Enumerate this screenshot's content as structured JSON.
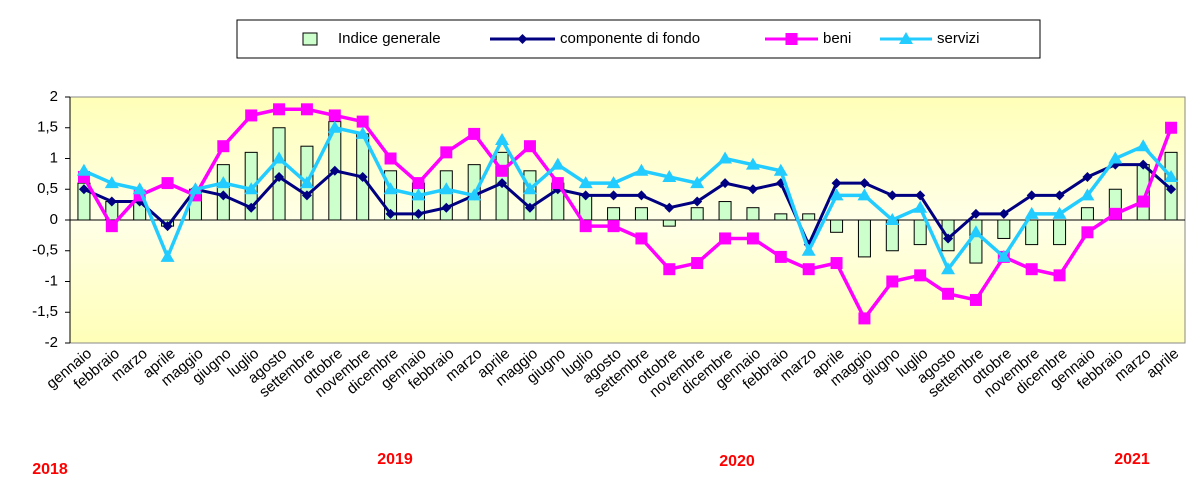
{
  "chart_data": {
    "type": "combo",
    "categories": [
      "gennaio",
      "febbraio",
      "marzo",
      "aprile",
      "maggio",
      "giugno",
      "luglio",
      "agosto",
      "settembre",
      "ottobre",
      "novembre",
      "dicembre",
      "gennaio",
      "febbraio",
      "marzo",
      "aprile",
      "maggio",
      "giugno",
      "luglio",
      "agosto",
      "settembre",
      "ottobre",
      "novembre",
      "dicembre",
      "gennaio",
      "febbraio",
      "marzo",
      "aprile",
      "maggio",
      "giugno",
      "luglio",
      "agosto",
      "settembre",
      "ottobre",
      "novembre",
      "dicembre",
      "gennaio",
      "febbraio",
      "marzo",
      "aprile"
    ],
    "year_labels": [
      "2018",
      "2019",
      "2020",
      "2021"
    ],
    "ylim": [
      -2,
      2
    ],
    "yticks": [
      2,
      {
        "value": 1.5,
        "label": "1,5"
      },
      1,
      {
        "value": 0.5,
        "label": "0,5"
      },
      0,
      {
        "value": -0.5,
        "label": "-0,5"
      },
      -1,
      {
        "value": -1.5,
        "label": "-1,5"
      },
      -2
    ],
    "grid": false,
    "legend": "top",
    "series": [
      {
        "name": "Indice generale",
        "type": "bar",
        "color": "#ccffcc",
        "values": [
          0.6,
          0.3,
          0.3,
          -0.1,
          0.5,
          0.9,
          1.1,
          1.5,
          1.2,
          1.6,
          1.4,
          0.8,
          0.6,
          0.8,
          0.9,
          1.1,
          0.8,
          0.6,
          0.4,
          0.2,
          0.2,
          -0.1,
          0.2,
          0.3,
          0.2,
          0.1,
          0.1,
          -0.2,
          -0.6,
          -0.5,
          -0.4,
          -0.5,
          -0.7,
          -0.3,
          -0.4,
          -0.4,
          0.2,
          0.5,
          0.9,
          1.1
        ]
      },
      {
        "name": "componente di fondo",
        "type": "line",
        "marker": "diamond",
        "color": "#000080",
        "values": [
          0.5,
          0.3,
          0.3,
          -0.1,
          0.5,
          0.4,
          0.2,
          0.7,
          0.4,
          0.8,
          0.7,
          0.1,
          0.1,
          0.2,
          0.4,
          0.6,
          0.2,
          0.5,
          0.4,
          0.4,
          0.4,
          0.2,
          0.3,
          0.6,
          0.5,
          0.6,
          -0.4,
          0.6,
          0.6,
          0.4,
          0.4,
          -0.3,
          0.1,
          0.1,
          0.4,
          0.4,
          0.7,
          0.9,
          0.9,
          0.5
        ]
      },
      {
        "name": "beni",
        "type": "line",
        "marker": "square",
        "color": "#ff00ff",
        "values": [
          0.7,
          -0.1,
          0.4,
          0.6,
          0.4,
          1.2,
          1.7,
          1.8,
          1.8,
          1.7,
          1.6,
          1.0,
          0.6,
          1.1,
          1.4,
          0.8,
          1.2,
          0.6,
          -0.1,
          -0.1,
          -0.3,
          -0.8,
          -0.7,
          -0.3,
          -0.3,
          -0.6,
          -0.8,
          -0.7,
          -1.6,
          -1.0,
          -0.9,
          -1.2,
          -1.3,
          -0.6,
          -0.8,
          -0.9,
          -0.2,
          0.1,
          0.3,
          1.5
        ]
      },
      {
        "name": "servizi",
        "type": "line",
        "marker": "triangle",
        "color": "#22ccff",
        "values": [
          0.8,
          0.6,
          0.5,
          -0.6,
          0.5,
          0.6,
          0.5,
          1.0,
          0.6,
          1.5,
          1.4,
          0.5,
          0.4,
          0.5,
          0.4,
          1.3,
          0.5,
          0.9,
          0.6,
          0.6,
          0.8,
          0.7,
          0.6,
          1.0,
          0.9,
          0.8,
          -0.5,
          0.4,
          0.4,
          0.0,
          0.2,
          -0.8,
          -0.2,
          -0.6,
          0.1,
          0.1,
          0.4,
          1.0,
          1.2,
          0.7
        ]
      }
    ]
  }
}
